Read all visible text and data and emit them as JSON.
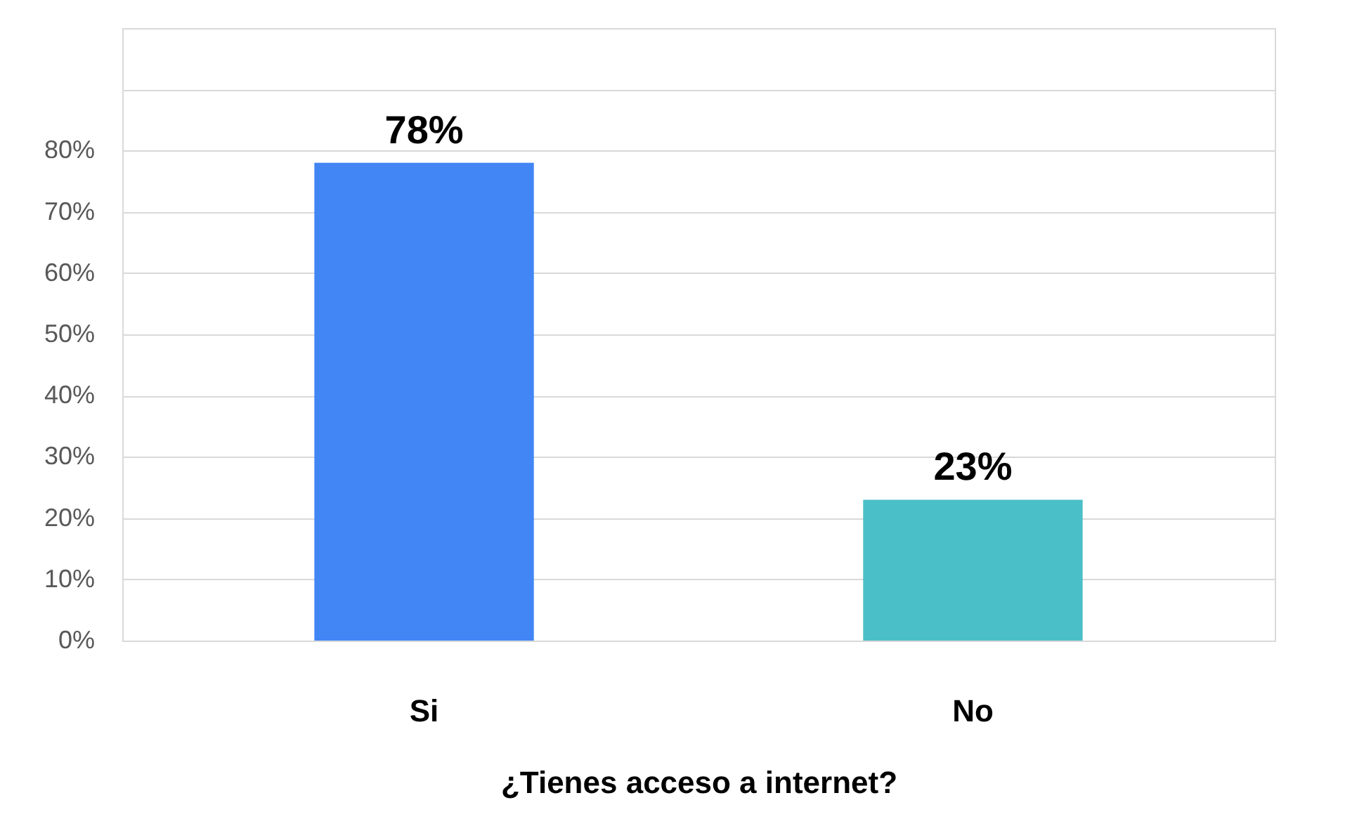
{
  "chart_data": {
    "type": "bar",
    "xlabel": "¿Tienes acceso a internet?",
    "categories": [
      "Si",
      "No"
    ],
    "values": [
      78,
      23
    ],
    "colors": [
      "#4285f4",
      "#4bbfc8"
    ],
    "value_labels": [
      "78%",
      "23%"
    ],
    "ylim": [
      0,
      100
    ],
    "yticks": [
      {
        "value": 0,
        "label": "0%"
      },
      {
        "value": 10,
        "label": "10%"
      },
      {
        "value": 20,
        "label": "20%"
      },
      {
        "value": 30,
        "label": "30%"
      },
      {
        "value": 40,
        "label": "40%"
      },
      {
        "value": 50,
        "label": "50%"
      },
      {
        "value": 60,
        "label": "60%"
      },
      {
        "value": 70,
        "label": "70%"
      },
      {
        "value": 80,
        "label": "80%"
      },
      {
        "value": 90,
        "label": null
      },
      {
        "value": 100,
        "label": null
      }
    ],
    "grid": "y",
    "legend": false
  }
}
